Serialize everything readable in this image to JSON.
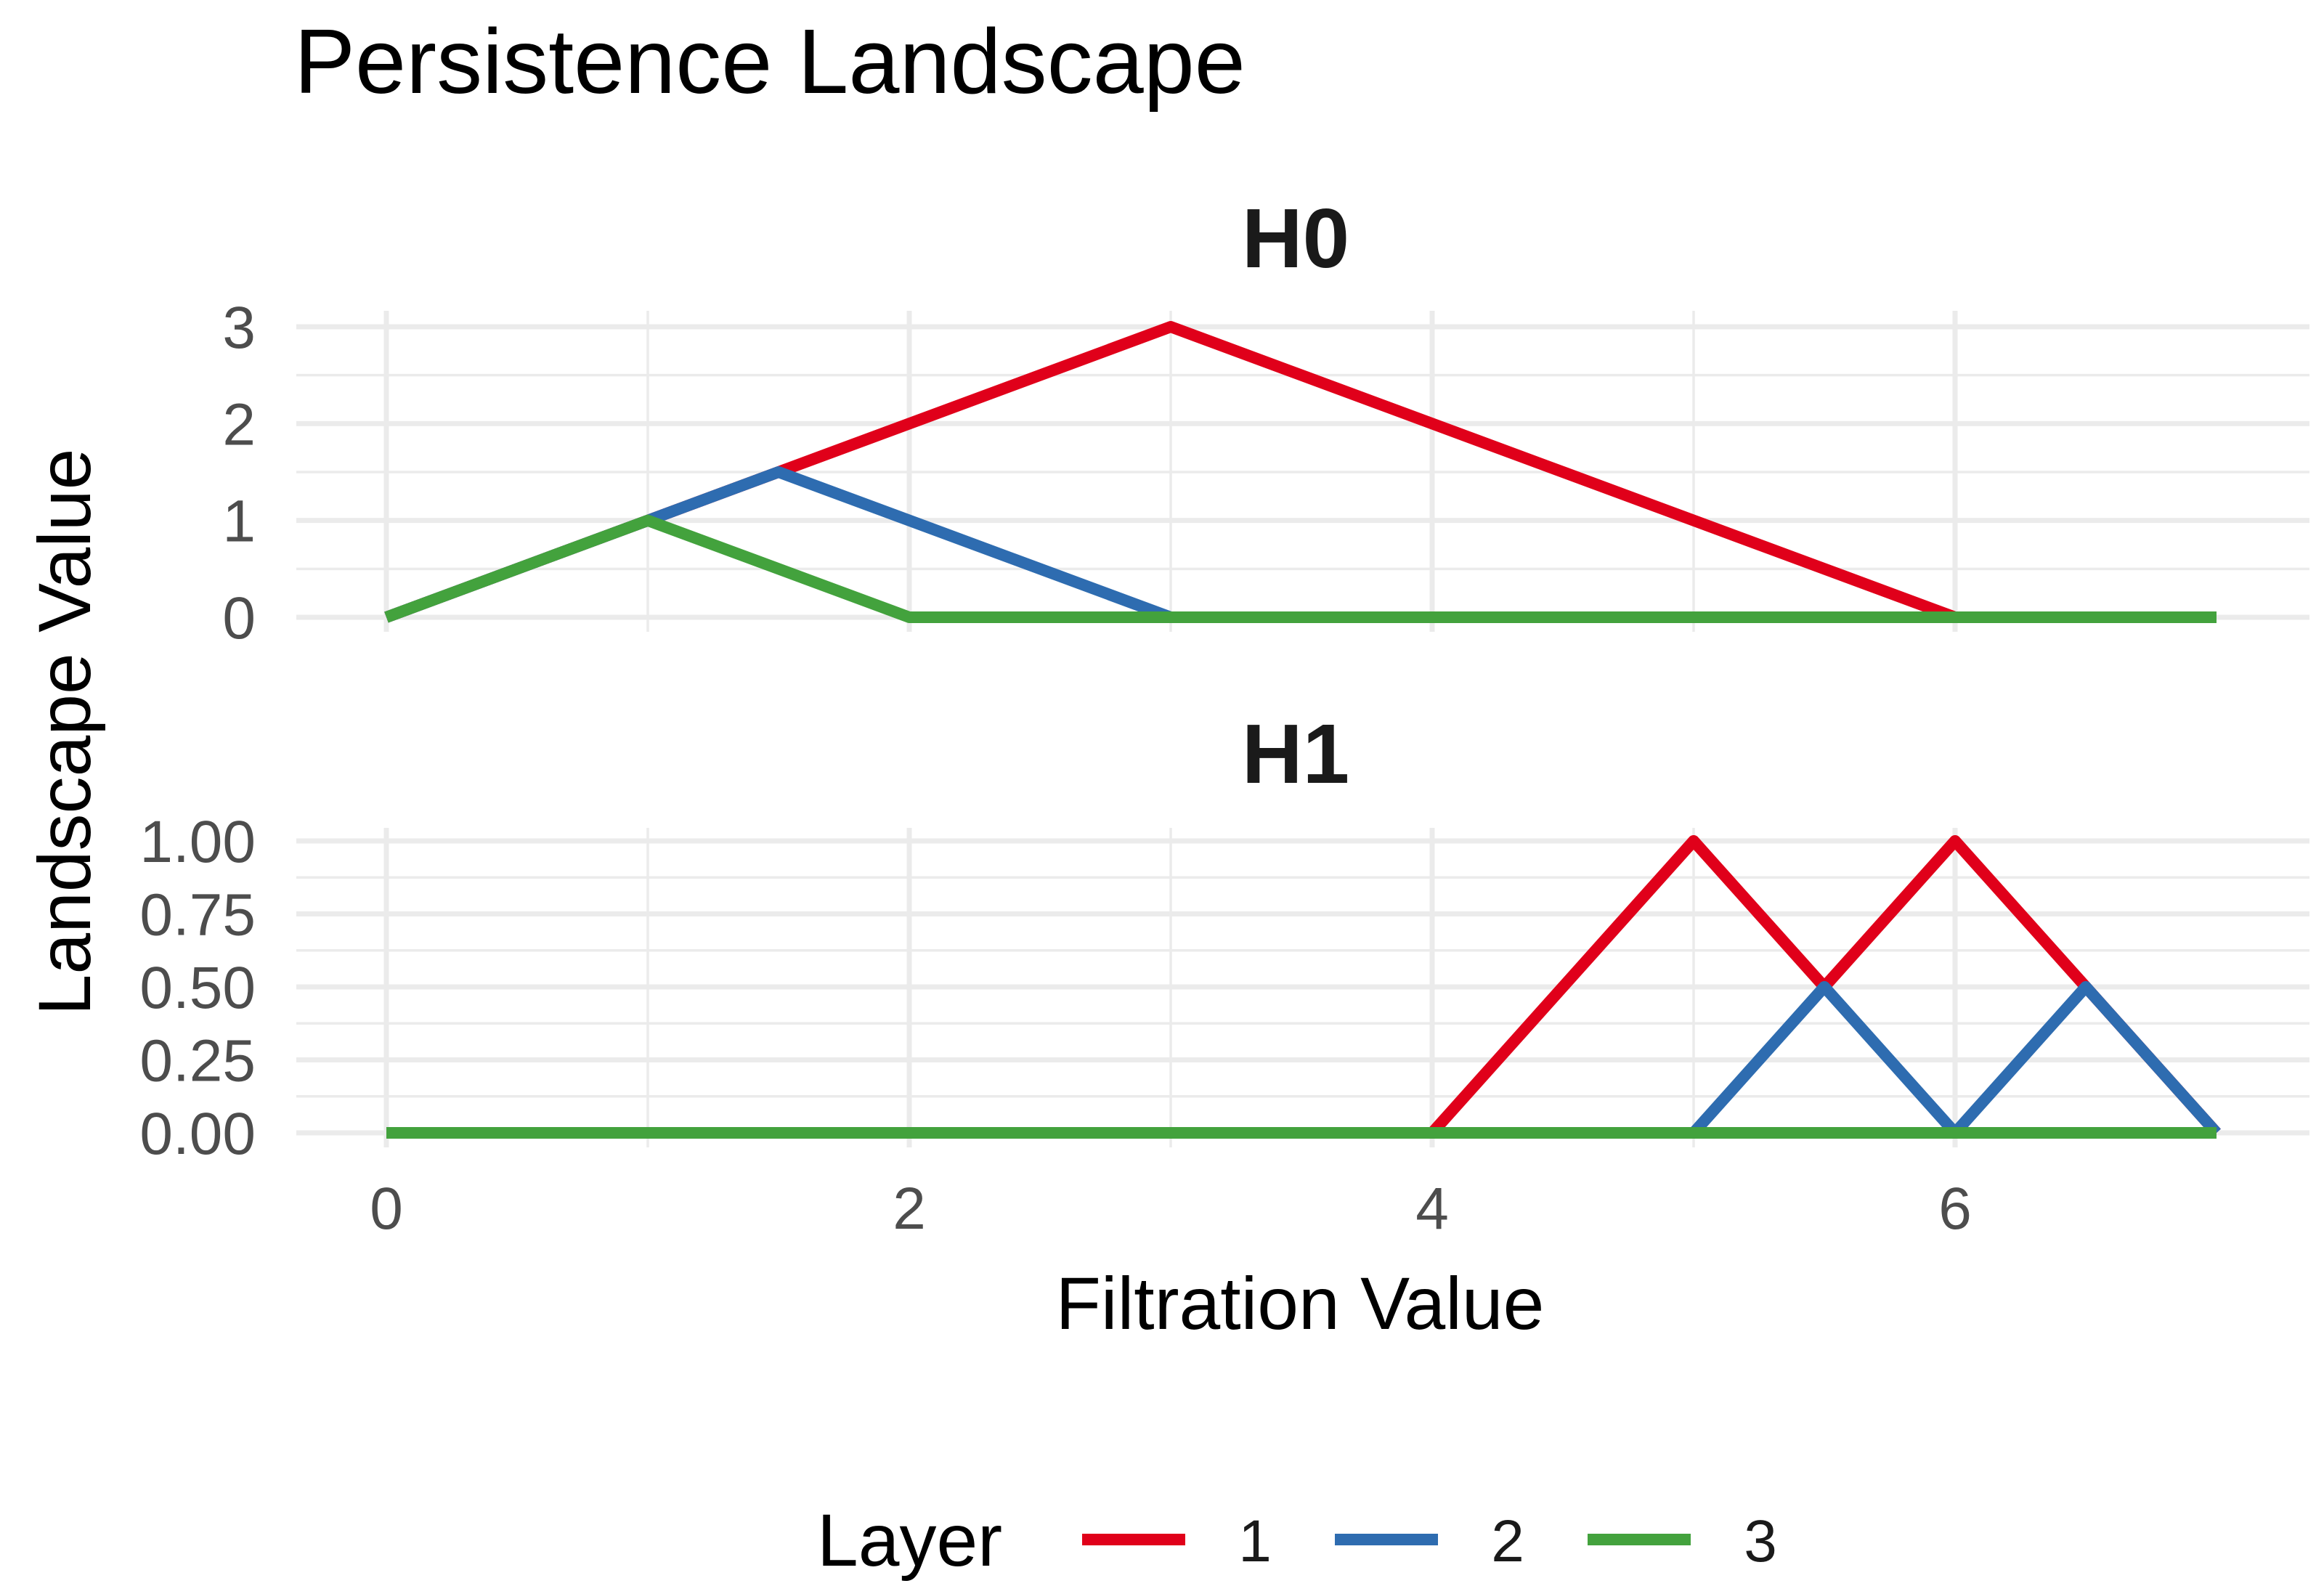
{
  "chart_data": {
    "type": "line",
    "title": "Persistence Landscape",
    "xlabel": "Filtration Value",
    "ylabel": "Landscape Value",
    "xlim": [
      0,
      7
    ],
    "x_ticks": [
      0,
      2,
      4,
      6
    ],
    "x_tick_labels": [
      "0",
      "2",
      "4",
      "6"
    ],
    "grid": true,
    "legend": {
      "title": "Layer",
      "position": "bottom",
      "entries": [
        {
          "label": "1",
          "color": "#e0001a"
        },
        {
          "label": "2",
          "color": "#2e6cb0"
        },
        {
          "label": "3",
          "color": "#43a23d"
        }
      ]
    },
    "panels": [
      {
        "strip": "H0",
        "ylim": [
          0,
          3
        ],
        "y_ticks": [
          0,
          1,
          2,
          3
        ],
        "y_tick_labels": [
          "0",
          "1",
          "2",
          "3"
        ],
        "series": [
          {
            "name": "1",
            "color": "#e0001a",
            "points": [
              [
                0,
                0
              ],
              [
                1,
                1
              ],
              [
                1.5,
                1.5
              ],
              [
                3,
                3
              ],
              [
                6,
                0
              ],
              [
                7,
                0
              ]
            ]
          },
          {
            "name": "2",
            "color": "#2e6cb0",
            "points": [
              [
                0,
                0
              ],
              [
                1,
                1
              ],
              [
                1.5,
                1.5
              ],
              [
                3,
                0
              ],
              [
                7,
                0
              ]
            ]
          },
          {
            "name": "3",
            "color": "#43a23d",
            "points": [
              [
                0,
                0
              ],
              [
                1,
                1
              ],
              [
                2,
                0
              ],
              [
                7,
                0
              ]
            ]
          }
        ]
      },
      {
        "strip": "H1",
        "ylim": [
          0,
          1
        ],
        "y_ticks": [
          0,
          0.25,
          0.5,
          0.75,
          1
        ],
        "y_tick_labels": [
          "0.00",
          "0.25",
          "0.50",
          "0.75",
          "1.00"
        ],
        "series": [
          {
            "name": "1",
            "color": "#e0001a",
            "points": [
              [
                0,
                0
              ],
              [
                4,
                0
              ],
              [
                5,
                1
              ],
              [
                5.5,
                0.5
              ],
              [
                6,
                1
              ],
              [
                6.5,
                0.5
              ],
              [
                7,
                0
              ]
            ]
          },
          {
            "name": "2",
            "color": "#2e6cb0",
            "points": [
              [
                0,
                0
              ],
              [
                5,
                0
              ],
              [
                5.5,
                0.5
              ],
              [
                6,
                0
              ],
              [
                6.5,
                0.5
              ],
              [
                7,
                0
              ]
            ]
          },
          {
            "name": "3",
            "color": "#43a23d",
            "points": [
              [
                0,
                0
              ],
              [
                7,
                0
              ]
            ]
          }
        ]
      }
    ]
  }
}
